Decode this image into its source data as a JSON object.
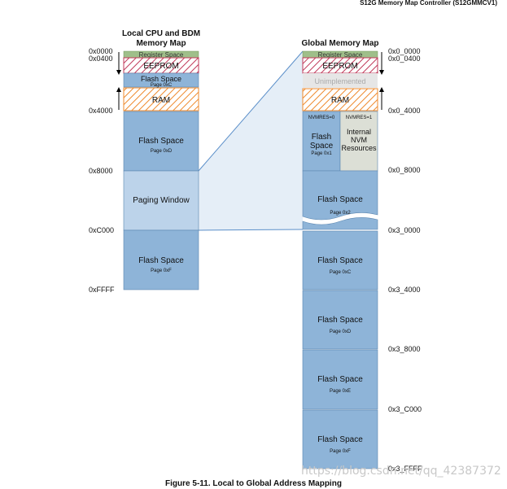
{
  "header": {
    "title": "S12G Memory Map Controller (S12GMMCV1)"
  },
  "local_map": {
    "title_line1": "Local CPU and BDM",
    "title_line2": "Memory Map",
    "addresses": [
      "0x0000",
      "0x0400",
      "0x4000",
      "0x8000",
      "0xC000",
      "0xFFFF"
    ],
    "blocks": {
      "register_space": "Register Space",
      "eeprom": "EEPROM",
      "flash_c": {
        "title": "Flash Space",
        "sub": "Page 0xC"
      },
      "ram": "RAM",
      "flash_d": {
        "title": "Flash Space",
        "sub": "Page 0xD"
      },
      "paging_window": "Paging Window",
      "flash_f": {
        "title": "Flash Space",
        "sub": "Page 0xF"
      }
    }
  },
  "global_map": {
    "title": "Global Memory Map",
    "addresses": [
      "0x0_0000",
      "0x0_0400",
      "0x0_4000",
      "0x0_8000",
      "0x3_0000",
      "0x3_4000",
      "0x3_8000",
      "0x3_C000",
      "0x3_FFFF"
    ],
    "blocks": {
      "register_space": "Register Space",
      "eeprom": "EEPROM",
      "unimplemented": "Unimplemented",
      "ram": "RAM",
      "nvmres0": "NVMRES=0",
      "nvmres1": "NVMRES=1",
      "flash_1": {
        "line1": "Flash",
        "line2": "Space",
        "sub": "Page 0x1"
      },
      "internal_nvm": {
        "line1": "Internal",
        "line2": "NVM",
        "line3": "Resources"
      },
      "flash_2": {
        "title": "Flash Space",
        "sub": "Page 0x2"
      },
      "flash_c": {
        "title": "Flash Space",
        "sub": "Page 0xC"
      },
      "flash_d": {
        "title": "Flash Space",
        "sub": "Page 0xD"
      },
      "flash_e": {
        "title": "Flash Space",
        "sub": "Page 0xE"
      },
      "flash_f": {
        "title": "Flash Space",
        "sub": "Page 0xF"
      }
    }
  },
  "caption": "Figure 5-11. Local to Global Address Mapping",
  "watermark": "https://blog.csdn.net/qq_42387372",
  "colors": {
    "flash": "#8eb4d8",
    "flash_border": "#5a86b0",
    "paging": "#bcd3ea",
    "register": "#9fbf8a",
    "eeprom_hatch": "#c0395a",
    "ram_hatch": "#ee8a2e",
    "internal_nvm": "#dcdfd6",
    "unimplemented": "#e6e6e6",
    "connector_fill": "#dce8f4",
    "connector_line": "#5b8fc9"
  }
}
